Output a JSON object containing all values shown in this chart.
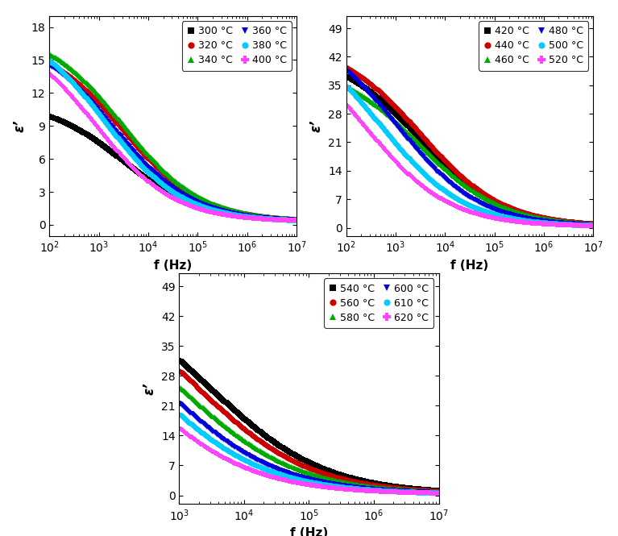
{
  "subplot1": {
    "ylabel": "ε’",
    "xlabel": "f (Hz)",
    "xlim": [
      100.0,
      10000000.0
    ],
    "ylim": [
      -1,
      19
    ],
    "yticks": [
      0,
      3,
      6,
      9,
      12,
      15,
      18
    ],
    "series": [
      {
        "label": "300 °C",
        "color": "#000000",
        "marker": "s",
        "A": 11.0,
        "tau": 5e-05,
        "beta": 0.55
      },
      {
        "label": "320 °C",
        "color": "#cc0000",
        "marker": "o",
        "A": 16.5,
        "tau": 5e-05,
        "beta": 0.55
      },
      {
        "label": "340 °C",
        "color": "#00aa00",
        "marker": "^",
        "A": 17.5,
        "tau": 5e-05,
        "beta": 0.55
      },
      {
        "label": "360 °C",
        "color": "#0000dd",
        "marker": "v",
        "A": 17.0,
        "tau": 8e-05,
        "beta": 0.55
      },
      {
        "label": "380 °C",
        "color": "#00ccff",
        "marker": "o",
        "A": 18.2,
        "tau": 0.00012,
        "beta": 0.55
      },
      {
        "label": "400 °C",
        "color": "#ff44ff",
        "marker": "P",
        "A": 17.5,
        "tau": 0.00018,
        "beta": 0.55
      }
    ]
  },
  "subplot2": {
    "ylabel": "ε’",
    "xlabel": "f (Hz)",
    "xlim": [
      100.0,
      10000000.0
    ],
    "ylim": [
      -2,
      52
    ],
    "yticks": [
      0,
      7,
      14,
      21,
      28,
      35,
      42,
      49
    ],
    "series": [
      {
        "label": "420 °C",
        "color": "#000000",
        "marker": "s",
        "A": 43.0,
        "tau": 5e-05,
        "beta": 0.52
      },
      {
        "label": "440 °C",
        "color": "#cc0000",
        "marker": "o",
        "A": 45.5,
        "tau": 5e-05,
        "beta": 0.52
      },
      {
        "label": "460 °C",
        "color": "#00aa00",
        "marker": "^",
        "A": 40.0,
        "tau": 5e-05,
        "beta": 0.52
      },
      {
        "label": "480 °C",
        "color": "#0000dd",
        "marker": "v",
        "A": 49.5,
        "tau": 0.00015,
        "beta": 0.52
      },
      {
        "label": "500 °C",
        "color": "#00ccff",
        "marker": "o",
        "A": 49.0,
        "tau": 0.0003,
        "beta": 0.52
      },
      {
        "label": "520 °C",
        "color": "#ff44ff",
        "marker": "P",
        "A": 48.0,
        "tau": 0.0006,
        "beta": 0.52
      }
    ]
  },
  "subplot3": {
    "ylabel": "ε’",
    "xlabel": "f (Hz)",
    "xlim": [
      1000.0,
      10000000.0
    ],
    "ylim": [
      -2,
      52
    ],
    "yticks": [
      0,
      7,
      14,
      21,
      28,
      35,
      42,
      49
    ],
    "series": [
      {
        "label": "540 °C",
        "color": "#000000",
        "marker": "s",
        "A": 49.0,
        "tau": 5e-05,
        "beta": 0.5
      },
      {
        "label": "560 °C",
        "color": "#cc0000",
        "marker": "o",
        "A": 49.5,
        "tau": 8e-05,
        "beta": 0.5
      },
      {
        "label": "580 °C",
        "color": "#00aa00",
        "marker": "^",
        "A": 47.0,
        "tau": 0.00012,
        "beta": 0.5
      },
      {
        "label": "600 °C",
        "color": "#0000dd",
        "marker": "v",
        "A": 48.0,
        "tau": 0.00025,
        "beta": 0.5
      },
      {
        "label": "610 °C",
        "color": "#00ccff",
        "marker": "o",
        "A": 48.5,
        "tau": 0.0004,
        "beta": 0.5
      },
      {
        "label": "620 °C",
        "color": "#ff44ff",
        "marker": "P",
        "A": 48.0,
        "tau": 0.0007,
        "beta": 0.5
      }
    ]
  }
}
